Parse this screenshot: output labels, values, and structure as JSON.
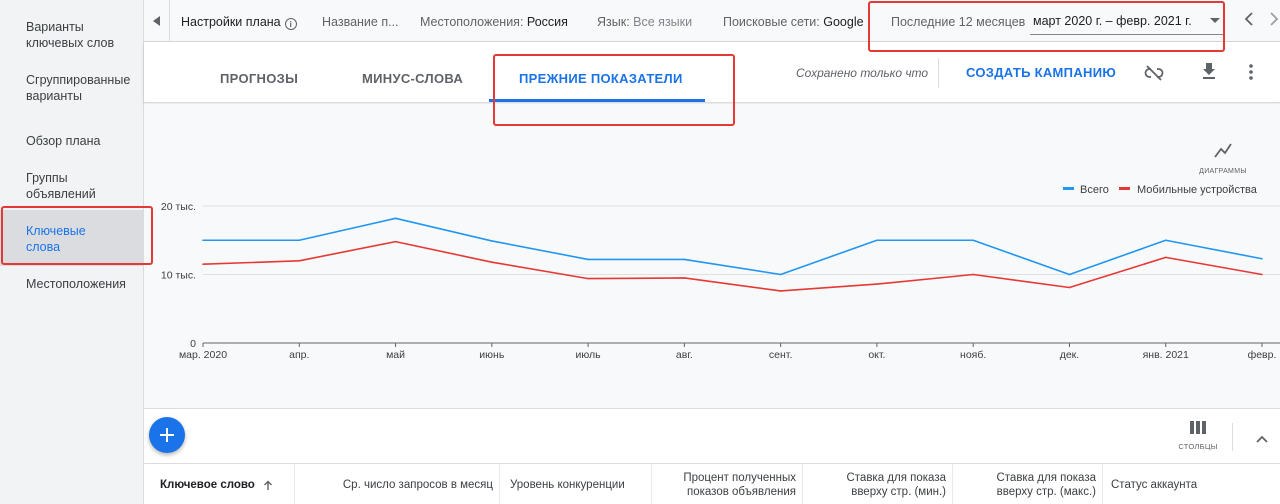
{
  "sidebar": {
    "items": [
      {
        "label": "Варианты ключевых слов"
      },
      {
        "label": "Сгруппированные варианты"
      },
      {
        "label": "Обзор плана"
      },
      {
        "label": "Группы объявлений"
      },
      {
        "label": "Ключевые слова"
      },
      {
        "label": "Местоположения"
      }
    ],
    "active_index": 4
  },
  "topbar": {
    "plan_settings": "Настройки плана",
    "plan_name": "Название п...",
    "locations_label": "Местоположения:",
    "locations_value": "Россия",
    "language_label": "Язык:",
    "language_value": "Все языки",
    "networks_label": "Поисковые сети:",
    "networks_value": "Google",
    "period_label": "Последние 12 месяцев",
    "period_value": "март 2020 г. – февр. 2021 г."
  },
  "tabs": [
    {
      "label": "ПРОГНОЗЫ",
      "active": false
    },
    {
      "label": "МИНУС-СЛОВА",
      "active": false
    },
    {
      "label": "ПРЕЖНИЕ ПОКАЗАТЕЛИ",
      "active": true
    }
  ],
  "actions": {
    "saved_status": "Сохранено только что",
    "create_campaign": "СОЗДАТЬ КАМПАНИЮ"
  },
  "chart_controls": {
    "charts_label": "ДИАГРАММЫ",
    "columns_label": "СТОЛБЦЫ"
  },
  "colors": {
    "accent": "#1a73e8",
    "series_total": "#2196f3",
    "series_mobile": "#e53935",
    "annotation": "#e53935"
  },
  "chart_data": {
    "type": "line",
    "categories": [
      "мар. 2020",
      "апр.",
      "май",
      "июнь",
      "июль",
      "авг.",
      "сент.",
      "окт.",
      "нояб.",
      "дек.",
      "янв. 2021",
      "февр."
    ],
    "y_ticks": [
      "0",
      "10 тыс.",
      "20 тыс."
    ],
    "ylim": [
      0,
      20000
    ],
    "series": [
      {
        "name": "Всего",
        "color": "#2196f3",
        "values": [
          15000,
          15000,
          18200,
          14900,
          12200,
          12200,
          10000,
          15000,
          15000,
          10000,
          15000,
          12300
        ]
      },
      {
        "name": "Мобильные устройства",
        "color": "#e53935",
        "values": [
          11500,
          12000,
          14800,
          11800,
          9400,
          9500,
          7600,
          8600,
          10000,
          8100,
          12500,
          10000
        ]
      }
    ],
    "legend_position": "top-right",
    "grid": true
  },
  "table": {
    "columns": [
      "Ключевое слово",
      "Ср. число запросов в месяц",
      "Уровень конкуренции",
      "Процент полученных показов объявления",
      "Ставка для показа вверху стр. (мин.)",
      "Ставка для показа вверху стр. (макс.)",
      "Статус аккаунта"
    ]
  }
}
